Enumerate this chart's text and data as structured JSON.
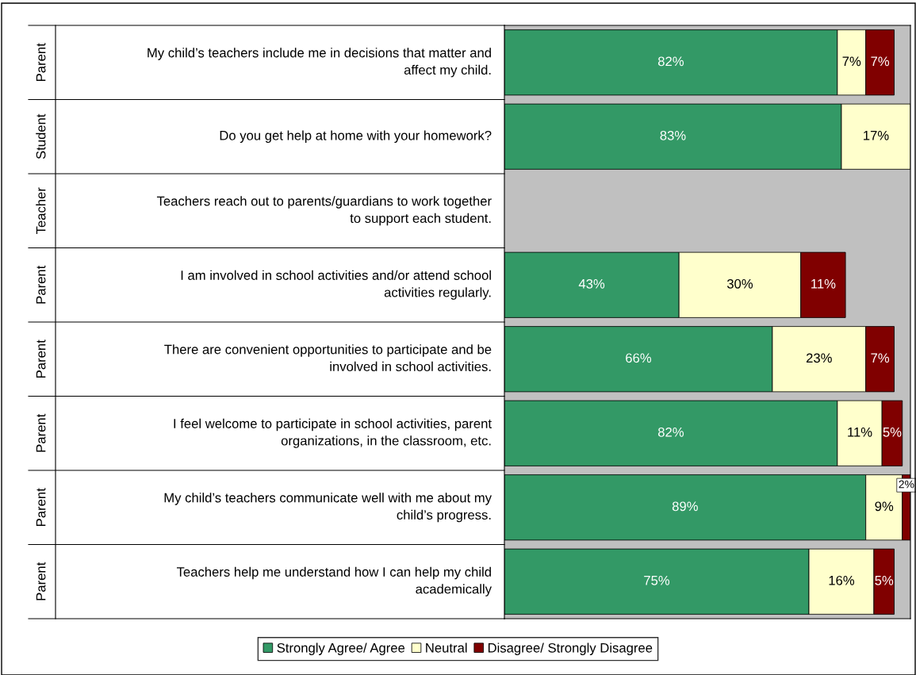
{
  "chart_data": {
    "type": "bar",
    "orientation": "horizontal",
    "stacked": true,
    "xlim": [
      0,
      100
    ],
    "legend": "bottom",
    "categories": [
      "My child’s teachers include me in decisions that matter and\naffect my child.",
      "Do you get help at home with your homework?",
      "Teachers reach out to parents/guardians to work together\nto support each student.",
      "I am involved in school activities and/or attend school\nactivities regularly.",
      "There are convenient opportunities to participate and be\ninvolved in school activities.",
      "I feel welcome to participate in school activities, parent\norganizations, in the classroom, etc.",
      "My child’s teachers communicate well with me about my\nchild’s progress.",
      "Teachers help me understand how I can help my child\nacademically"
    ],
    "annotations": [
      "Parent",
      "Student",
      "Teacher",
      "Parent",
      "Parent",
      "Parent",
      "Parent",
      "Parent"
    ],
    "series": [
      {
        "name": "Strongly Agree/ Agree",
        "color": "#339966",
        "values": [
          82,
          83,
          null,
          43,
          66,
          82,
          89,
          75
        ],
        "value_labels": [
          "82%",
          "83%",
          null,
          "43%",
          "66%",
          "82%",
          "89%",
          "75%"
        ]
      },
      {
        "name": "Neutral",
        "color": "#ffffcc",
        "values": [
          7,
          17,
          null,
          30,
          23,
          11,
          9,
          16
        ],
        "value_labels": [
          "7%",
          "17%",
          null,
          "30%",
          "23%",
          "11%",
          "9%",
          "16%"
        ]
      },
      {
        "name": "Disagree/ Strongly Disagree",
        "color": "#800000",
        "values": [
          7,
          null,
          null,
          11,
          7,
          5,
          2,
          5
        ],
        "value_labels": [
          "7%",
          null,
          null,
          "11%",
          "7%",
          "5%",
          "2%",
          "5%"
        ]
      }
    ]
  }
}
